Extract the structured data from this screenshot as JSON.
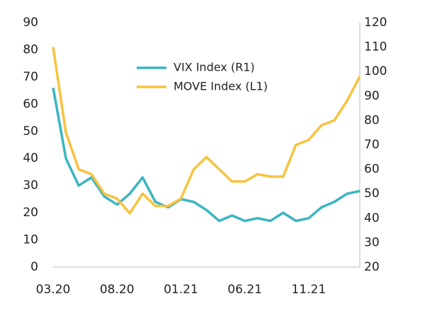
{
  "chart_data": {
    "type": "line",
    "categories": [
      "03.20",
      null,
      null,
      null,
      null,
      "08.20",
      null,
      null,
      null,
      null,
      "01.21",
      null,
      null,
      null,
      null,
      "06.21",
      null,
      null,
      null,
      null,
      "11.21",
      null,
      null,
      null,
      null
    ],
    "series": [
      {
        "name": "VIX Index  (R1)",
        "color": "#3ab5c1",
        "axis": "y",
        "values": [
          66,
          40,
          30,
          33,
          26,
          23,
          27,
          33,
          24,
          22,
          25,
          24,
          21,
          17,
          19,
          17,
          18,
          17,
          20,
          17,
          18,
          22,
          24,
          27,
          28
        ]
      },
      {
        "name": "MOVE Index  (L1)",
        "color": "#f8c23e",
        "axis": "y2",
        "values": [
          110,
          75,
          60,
          58,
          50,
          48,
          42,
          50,
          45,
          45,
          48,
          60,
          65,
          60,
          55,
          55,
          58,
          57,
          57,
          70,
          72,
          78,
          80,
          88,
          98
        ]
      }
    ],
    "ylim": [
      0,
      90
    ],
    "yticks": [
      0,
      10,
      20,
      30,
      40,
      50,
      60,
      70,
      80,
      90
    ],
    "y2lim": [
      20,
      120
    ],
    "y2ticks": [
      20,
      30,
      40,
      50,
      60,
      70,
      80,
      90,
      100,
      110,
      120
    ],
    "grid": false
  }
}
